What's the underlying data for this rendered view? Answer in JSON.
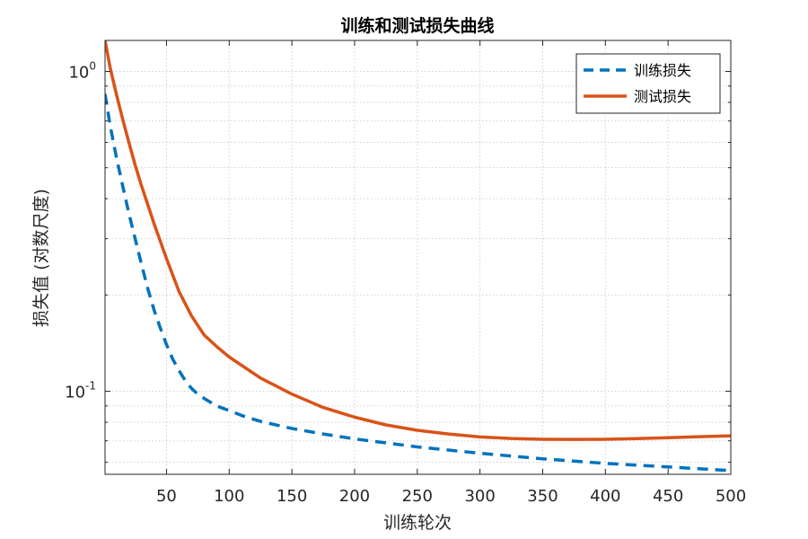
{
  "chart_data": {
    "type": "line",
    "title": "训练和测试损失曲线",
    "xlabel": "训练轮次",
    "ylabel": "损失值 (对数尺度)",
    "xlim": [
      1,
      500
    ],
    "ylim": [
      0.055,
      1.25
    ],
    "yscale": "log",
    "grid": true,
    "legend_position": "top-right",
    "x_ticks": [
      {
        "value": 50,
        "label": "50"
      },
      {
        "value": 100,
        "label": "100"
      },
      {
        "value": 150,
        "label": "150"
      },
      {
        "value": 200,
        "label": "200"
      },
      {
        "value": 250,
        "label": "250"
      },
      {
        "value": 300,
        "label": "300"
      },
      {
        "value": 350,
        "label": "350"
      },
      {
        "value": 400,
        "label": "400"
      },
      {
        "value": 450,
        "label": "450"
      },
      {
        "value": 500,
        "label": "500"
      }
    ],
    "y_ticks": [
      {
        "value": 0.1,
        "base": "10",
        "exp": "-1"
      },
      {
        "value": 1,
        "base": "10",
        "exp": "0"
      }
    ],
    "series": [
      {
        "name": "训练损失",
        "color": "#0072BD",
        "style": "dashed",
        "x": [
          1,
          5,
          10,
          15,
          20,
          25,
          30,
          35,
          40,
          45,
          50,
          55,
          60,
          65,
          70,
          75,
          80,
          90,
          100,
          110,
          125,
          150,
          175,
          200,
          250,
          300,
          350,
          400,
          450,
          500
        ],
        "y": [
          0.85,
          0.68,
          0.54,
          0.44,
          0.36,
          0.3,
          0.25,
          0.21,
          0.18,
          0.158,
          0.14,
          0.126,
          0.116,
          0.108,
          0.102,
          0.098,
          0.095,
          0.09,
          0.087,
          0.084,
          0.0805,
          0.0765,
          0.0735,
          0.071,
          0.067,
          0.064,
          0.0615,
          0.0595,
          0.058,
          0.0565
        ]
      },
      {
        "name": "测试损失",
        "color": "#D95319",
        "style": "solid",
        "x": [
          1,
          5,
          10,
          15,
          20,
          25,
          30,
          40,
          50,
          60,
          70,
          80,
          90,
          100,
          125,
          150,
          175,
          200,
          225,
          250,
          275,
          300,
          325,
          350,
          375,
          400,
          425,
          450,
          475,
          500
        ],
        "y": [
          1.25,
          1.03,
          0.85,
          0.71,
          0.6,
          0.51,
          0.44,
          0.335,
          0.26,
          0.205,
          0.172,
          0.15,
          0.138,
          0.128,
          0.11,
          0.098,
          0.089,
          0.083,
          0.0785,
          0.0755,
          0.0735,
          0.072,
          0.0712,
          0.0708,
          0.0707,
          0.0708,
          0.0711,
          0.0716,
          0.0721,
          0.0726
        ]
      }
    ]
  }
}
